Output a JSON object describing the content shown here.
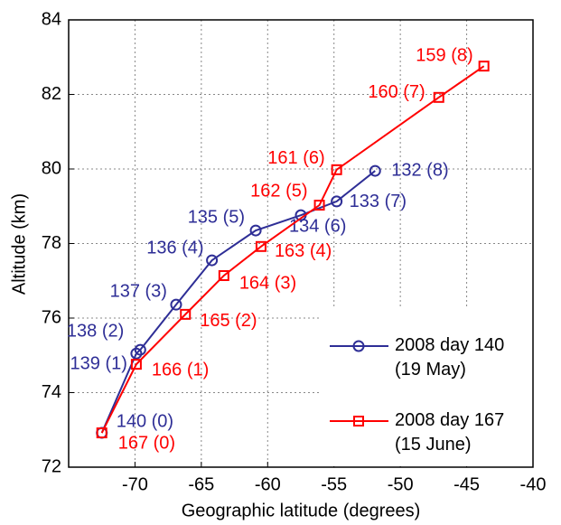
{
  "chart_data": {
    "type": "line",
    "xlabel": "Geographic latitude (degrees)",
    "ylabel": "Altitude (km)",
    "xlim": [
      -75,
      -40
    ],
    "xticks": [
      -70,
      -65,
      -60,
      -55,
      -50,
      -45,
      -40
    ],
    "ylim": [
      72,
      84
    ],
    "yticks": [
      72,
      74,
      76,
      78,
      80,
      82,
      84
    ],
    "grid": true,
    "legend": "lower right",
    "series": [
      {
        "name": "2008 day 140\n(19 May)",
        "color": "#2e2e96",
        "marker": "circle",
        "x": [
          -72.5,
          -69.9,
          -69.6,
          -66.9,
          -64.2,
          -60.9,
          -57.5,
          -54.8,
          -51.9
        ],
        "values": [
          72.92,
          75.05,
          75.15,
          76.36,
          77.55,
          78.35,
          78.76,
          79.13,
          79.95
        ],
        "point_labels": [
          "140 (0)",
          "139 (1)",
          "138 (2)",
          "137 (3)",
          "136 (4)",
          "135 (5)",
          "134 (6)",
          "133 (7)",
          "132 (8)"
        ]
      },
      {
        "name": "2008 day 167\n(15 June)",
        "color": "#ff0000",
        "marker": "square",
        "x": [
          -72.5,
          -69.9,
          -66.2,
          -63.3,
          -60.5,
          -56.1,
          -54.8,
          -47.1,
          -43.7
        ],
        "values": [
          72.92,
          74.76,
          76.1,
          77.14,
          77.92,
          79.03,
          79.98,
          81.92,
          82.76
        ],
        "point_labels": [
          "167 (0)",
          "166 (1)",
          "165 (2)",
          "164 (3)",
          "163 (4)",
          "162 (5)",
          "161 (6)",
          "160 (7)",
          "159 (8)"
        ]
      }
    ]
  }
}
